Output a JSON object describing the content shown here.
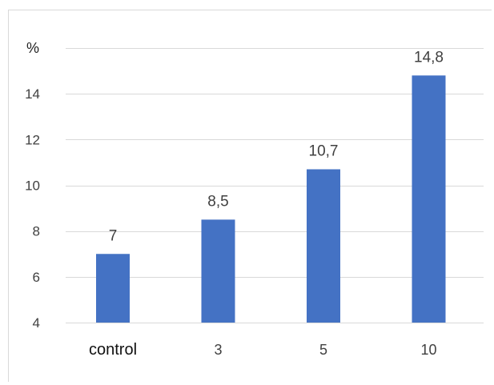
{
  "chart_data": {
    "type": "bar",
    "y_unit_label": "%",
    "categories": [
      "control",
      "3",
      "5",
      "10"
    ],
    "values": [
      7,
      8.5,
      10.7,
      14.8
    ],
    "data_labels": [
      "7",
      "8,5",
      "10,7",
      "14,8"
    ],
    "ylim": [
      4,
      16
    ],
    "yticks": [
      4,
      6,
      8,
      10,
      12,
      14
    ],
    "grid": true,
    "legend": "none",
    "bar_color": "#4472C4"
  }
}
